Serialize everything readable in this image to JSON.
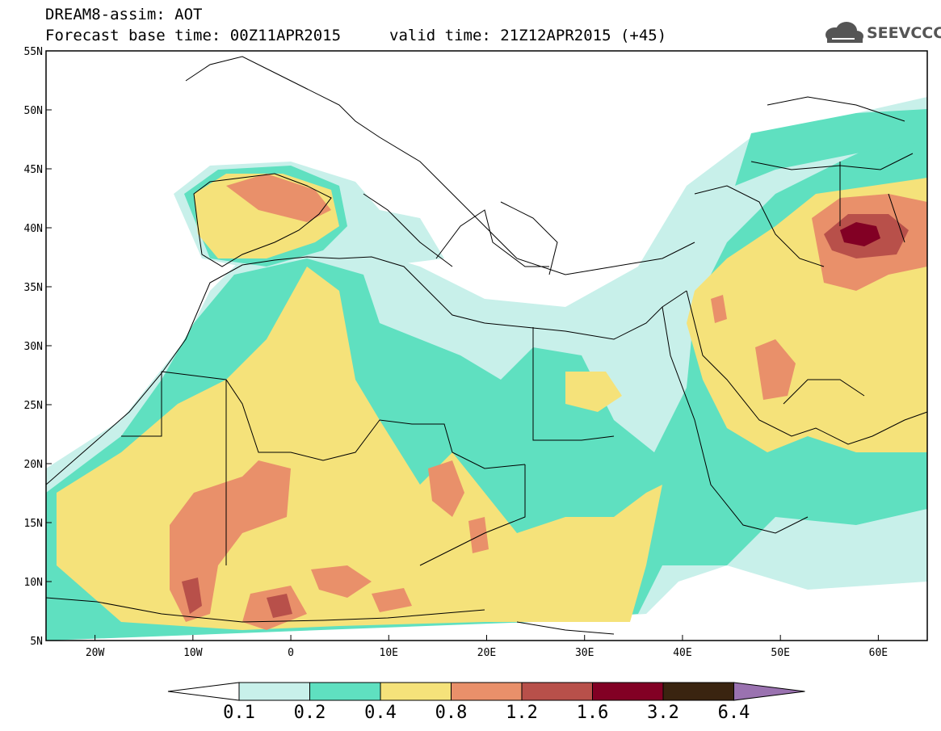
{
  "header": {
    "line1": "DREAM8-assim: AOT",
    "line2": "Forecast base time: 00Z11APR2015",
    "valid": "valid time: 21Z12APR2015 (+45)",
    "logo_text": "SEEVCCC",
    "logo_icon": "cloud-logo-icon"
  },
  "map": {
    "lon_range": [
      -25,
      65
    ],
    "lat_range": [
      5,
      55
    ],
    "lon_ticks": [
      "20W",
      "10W",
      "0",
      "10E",
      "20E",
      "30E",
      "40E",
      "50E",
      "60E"
    ],
    "lat_ticks": [
      "55N",
      "50N",
      "45N",
      "40N",
      "35N",
      "30N",
      "25N",
      "20N",
      "15N",
      "10N",
      "5N"
    ]
  },
  "colorbar": {
    "labels": [
      "0.1",
      "0.2",
      "0.4",
      "0.8",
      "1.2",
      "1.6",
      "3.2",
      "6.4"
    ],
    "colors": [
      "#ffffff",
      "#c8f0ea",
      "#5fe0c0",
      "#f5e27a",
      "#e9906a",
      "#b8504a",
      "#820024",
      "#3a2410",
      "#9a72b0"
    ]
  }
}
